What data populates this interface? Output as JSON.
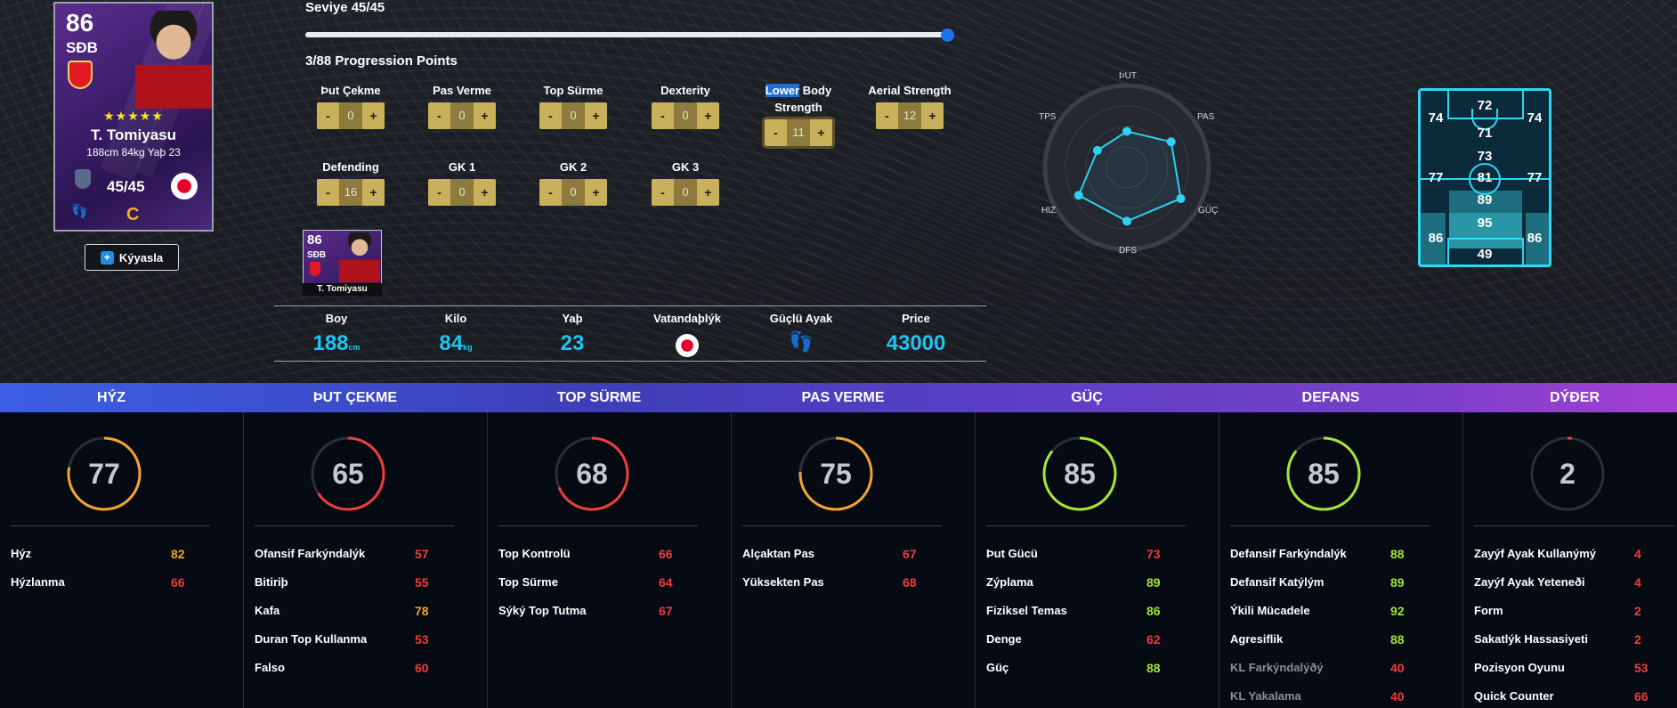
{
  "card": {
    "rating": "86",
    "position": "SÐB",
    "stars": "★★★★★",
    "name": "T. Tomiyasu",
    "meta": "188cm 84kg Yaþ 23",
    "level": "45/45",
    "grade": "C"
  },
  "compare_label": "Kýyasla",
  "level_label": "Seviye 45/45",
  "level": {
    "current": 45,
    "max": 45
  },
  "points_label": "3/88 Progression Points",
  "progression": [
    {
      "label": "Þut Çekme",
      "value": "0"
    },
    {
      "label": "Pas Verme",
      "value": "0"
    },
    {
      "label": "Top Sürme",
      "value": "0"
    },
    {
      "label": "Dexterity",
      "value": "0"
    },
    {
      "label_sel": "Lower",
      "label_rest": " Body Strength",
      "value": "11"
    },
    {
      "label": "Aerial Strength",
      "value": "12"
    },
    {
      "label": "Defending",
      "value": "16"
    },
    {
      "label": "GK 1",
      "value": "0"
    },
    {
      "label": "GK 2",
      "value": "0"
    },
    {
      "label": "GK 3",
      "value": "0"
    }
  ],
  "stepper": {
    "minus": "-",
    "plus": "+"
  },
  "mini_card": {
    "rating": "86",
    "position": "SÐB",
    "name": "T. Tomiyasu"
  },
  "info": {
    "height_label": "Boy",
    "height_value": "188",
    "height_unit": "cm",
    "weight_label": "Kilo",
    "weight_value": "84",
    "weight_unit": "kg",
    "age_label": "Yaþ",
    "age_value": "23",
    "nation_label": "Vatandaþlýk",
    "foot_label": "Güçlü Ayak",
    "price_label": "Price",
    "price_value": "43000"
  },
  "radar": {
    "labels": [
      "ÞUT",
      "PAS",
      "GÜÇ",
      "DFS",
      "HIZ",
      "TPS"
    ],
    "values": [
      0.55,
      0.78,
      0.95,
      0.82,
      0.85,
      0.52
    ],
    "accent": "#2fd0f0"
  },
  "pitch": [
    "72",
    "74",
    "74",
    "71",
    "73",
    "77",
    "81",
    "77",
    "89",
    "95",
    "86",
    "86",
    "49"
  ],
  "categories": [
    "HÝZ",
    "ÞUT ÇEKME",
    "TOP SÜRME",
    "PAS VERME",
    "GÜÇ",
    "DEFANS",
    "DÝÐER"
  ],
  "groups": [
    {
      "overall": 77,
      "color": "#f4a32d",
      "stats": [
        {
          "name": "Hýz",
          "value": "82",
          "tone": "orange"
        },
        {
          "name": "Hýzlanma",
          "value": "66",
          "tone": "red"
        }
      ]
    },
    {
      "overall": 65,
      "color": "#ec3e3a",
      "stats": [
        {
          "name": "Ofansif Farkýndalýk",
          "value": "57",
          "tone": "red"
        },
        {
          "name": "Bitiriþ",
          "value": "55",
          "tone": "red"
        },
        {
          "name": "Kafa",
          "value": "78",
          "tone": "orange"
        },
        {
          "name": "Duran Top Kullanma",
          "value": "53",
          "tone": "red"
        },
        {
          "name": "Falso",
          "value": "60",
          "tone": "red"
        }
      ]
    },
    {
      "overall": 68,
      "color": "#ec3e3a",
      "stats": [
        {
          "name": "Top Kontrolü",
          "value": "66",
          "tone": "red"
        },
        {
          "name": "Top Sürme",
          "value": "64",
          "tone": "red"
        },
        {
          "name": "Sýký Top Tutma",
          "value": "67",
          "tone": "red"
        }
      ]
    },
    {
      "overall": 75,
      "color": "#f4a32d",
      "stats": [
        {
          "name": "Alçaktan Pas",
          "value": "67",
          "tone": "red"
        },
        {
          "name": "Yüksekten Pas",
          "value": "68",
          "tone": "red"
        }
      ]
    },
    {
      "overall": 85,
      "color": "#a3e635",
      "stats": [
        {
          "name": "Þut Gücü",
          "value": "73",
          "tone": "red"
        },
        {
          "name": "Zýplama",
          "value": "89",
          "tone": "green"
        },
        {
          "name": "Fiziksel Temas",
          "value": "86",
          "tone": "green"
        },
        {
          "name": "Denge",
          "value": "62",
          "tone": "red"
        },
        {
          "name": "Güç",
          "value": "88",
          "tone": "green"
        }
      ]
    },
    {
      "overall": 85,
      "color": "#a3e635",
      "stats": [
        {
          "name": "Defansif Farkýndalýk",
          "value": "88",
          "tone": "green"
        },
        {
          "name": "Defansif Katýlým",
          "value": "89",
          "tone": "green"
        },
        {
          "name": "Ýkili Mücadele",
          "value": "92",
          "tone": "green"
        },
        {
          "name": "Agresiflik",
          "value": "88",
          "tone": "green"
        },
        {
          "name": "KL Farkýndalýðý",
          "value": "40",
          "tone": "red",
          "dim": true
        },
        {
          "name": "KL Yakalama",
          "value": "40",
          "tone": "red",
          "dim": true
        }
      ]
    },
    {
      "overall": 2,
      "color": "#ec3e3a",
      "stats": [
        {
          "name": "Zayýf Ayak Kullanýmý",
          "value": "4",
          "tone": "red"
        },
        {
          "name": "Zayýf Ayak Yeteneði",
          "value": "4",
          "tone": "red"
        },
        {
          "name": "Form",
          "value": "2",
          "tone": "red"
        },
        {
          "name": "Sakatlýk Hassasiyeti",
          "value": "2",
          "tone": "red"
        },
        {
          "name": "Pozisyon Oyunu",
          "value": "53",
          "tone": "red"
        },
        {
          "name": "Quick Counter",
          "value": "66",
          "tone": "red"
        }
      ]
    }
  ]
}
